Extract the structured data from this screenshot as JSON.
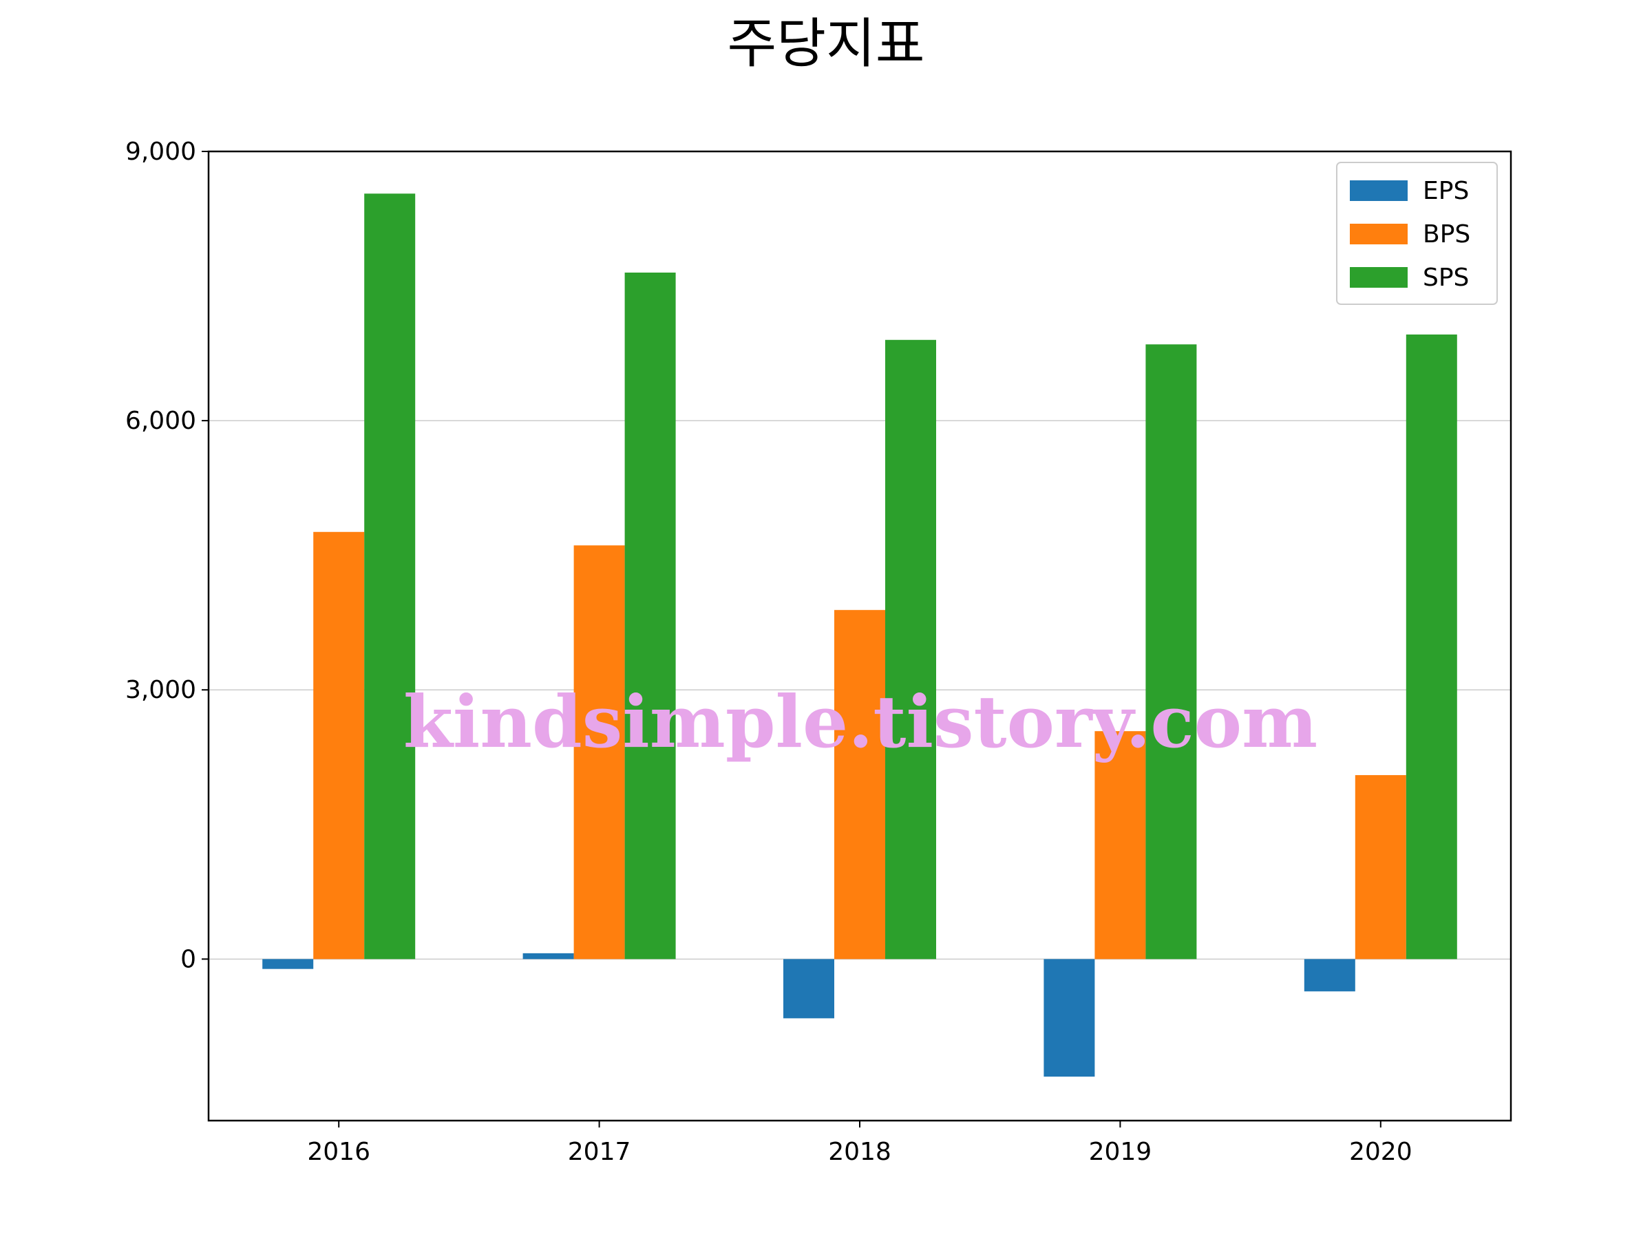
{
  "chart_data": {
    "type": "bar",
    "title": "주당지표",
    "xlabel": "",
    "ylabel": "",
    "categories": [
      "2016",
      "2017",
      "2018",
      "2019",
      "2020"
    ],
    "series": [
      {
        "name": "EPS",
        "color": "#1f77b4",
        "values": [
          -110,
          65,
          -660,
          -1310,
          -360
        ]
      },
      {
        "name": "BPS",
        "color": "#ff7f0e",
        "values": [
          4760,
          4610,
          3890,
          2540,
          2050
        ]
      },
      {
        "name": "SPS",
        "color": "#2ca02c",
        "values": [
          8530,
          7650,
          6900,
          6850,
          6960
        ]
      }
    ],
    "ylim": [
      -1800,
      9000
    ],
    "yticks": [
      0,
      3000,
      6000,
      9000
    ],
    "ytick_labels": [
      "0",
      "3,000",
      "6,000",
      "9,000"
    ],
    "grid": "horizontal",
    "legend_position": "top-right"
  },
  "watermark": "kindsimple.tistory.com"
}
